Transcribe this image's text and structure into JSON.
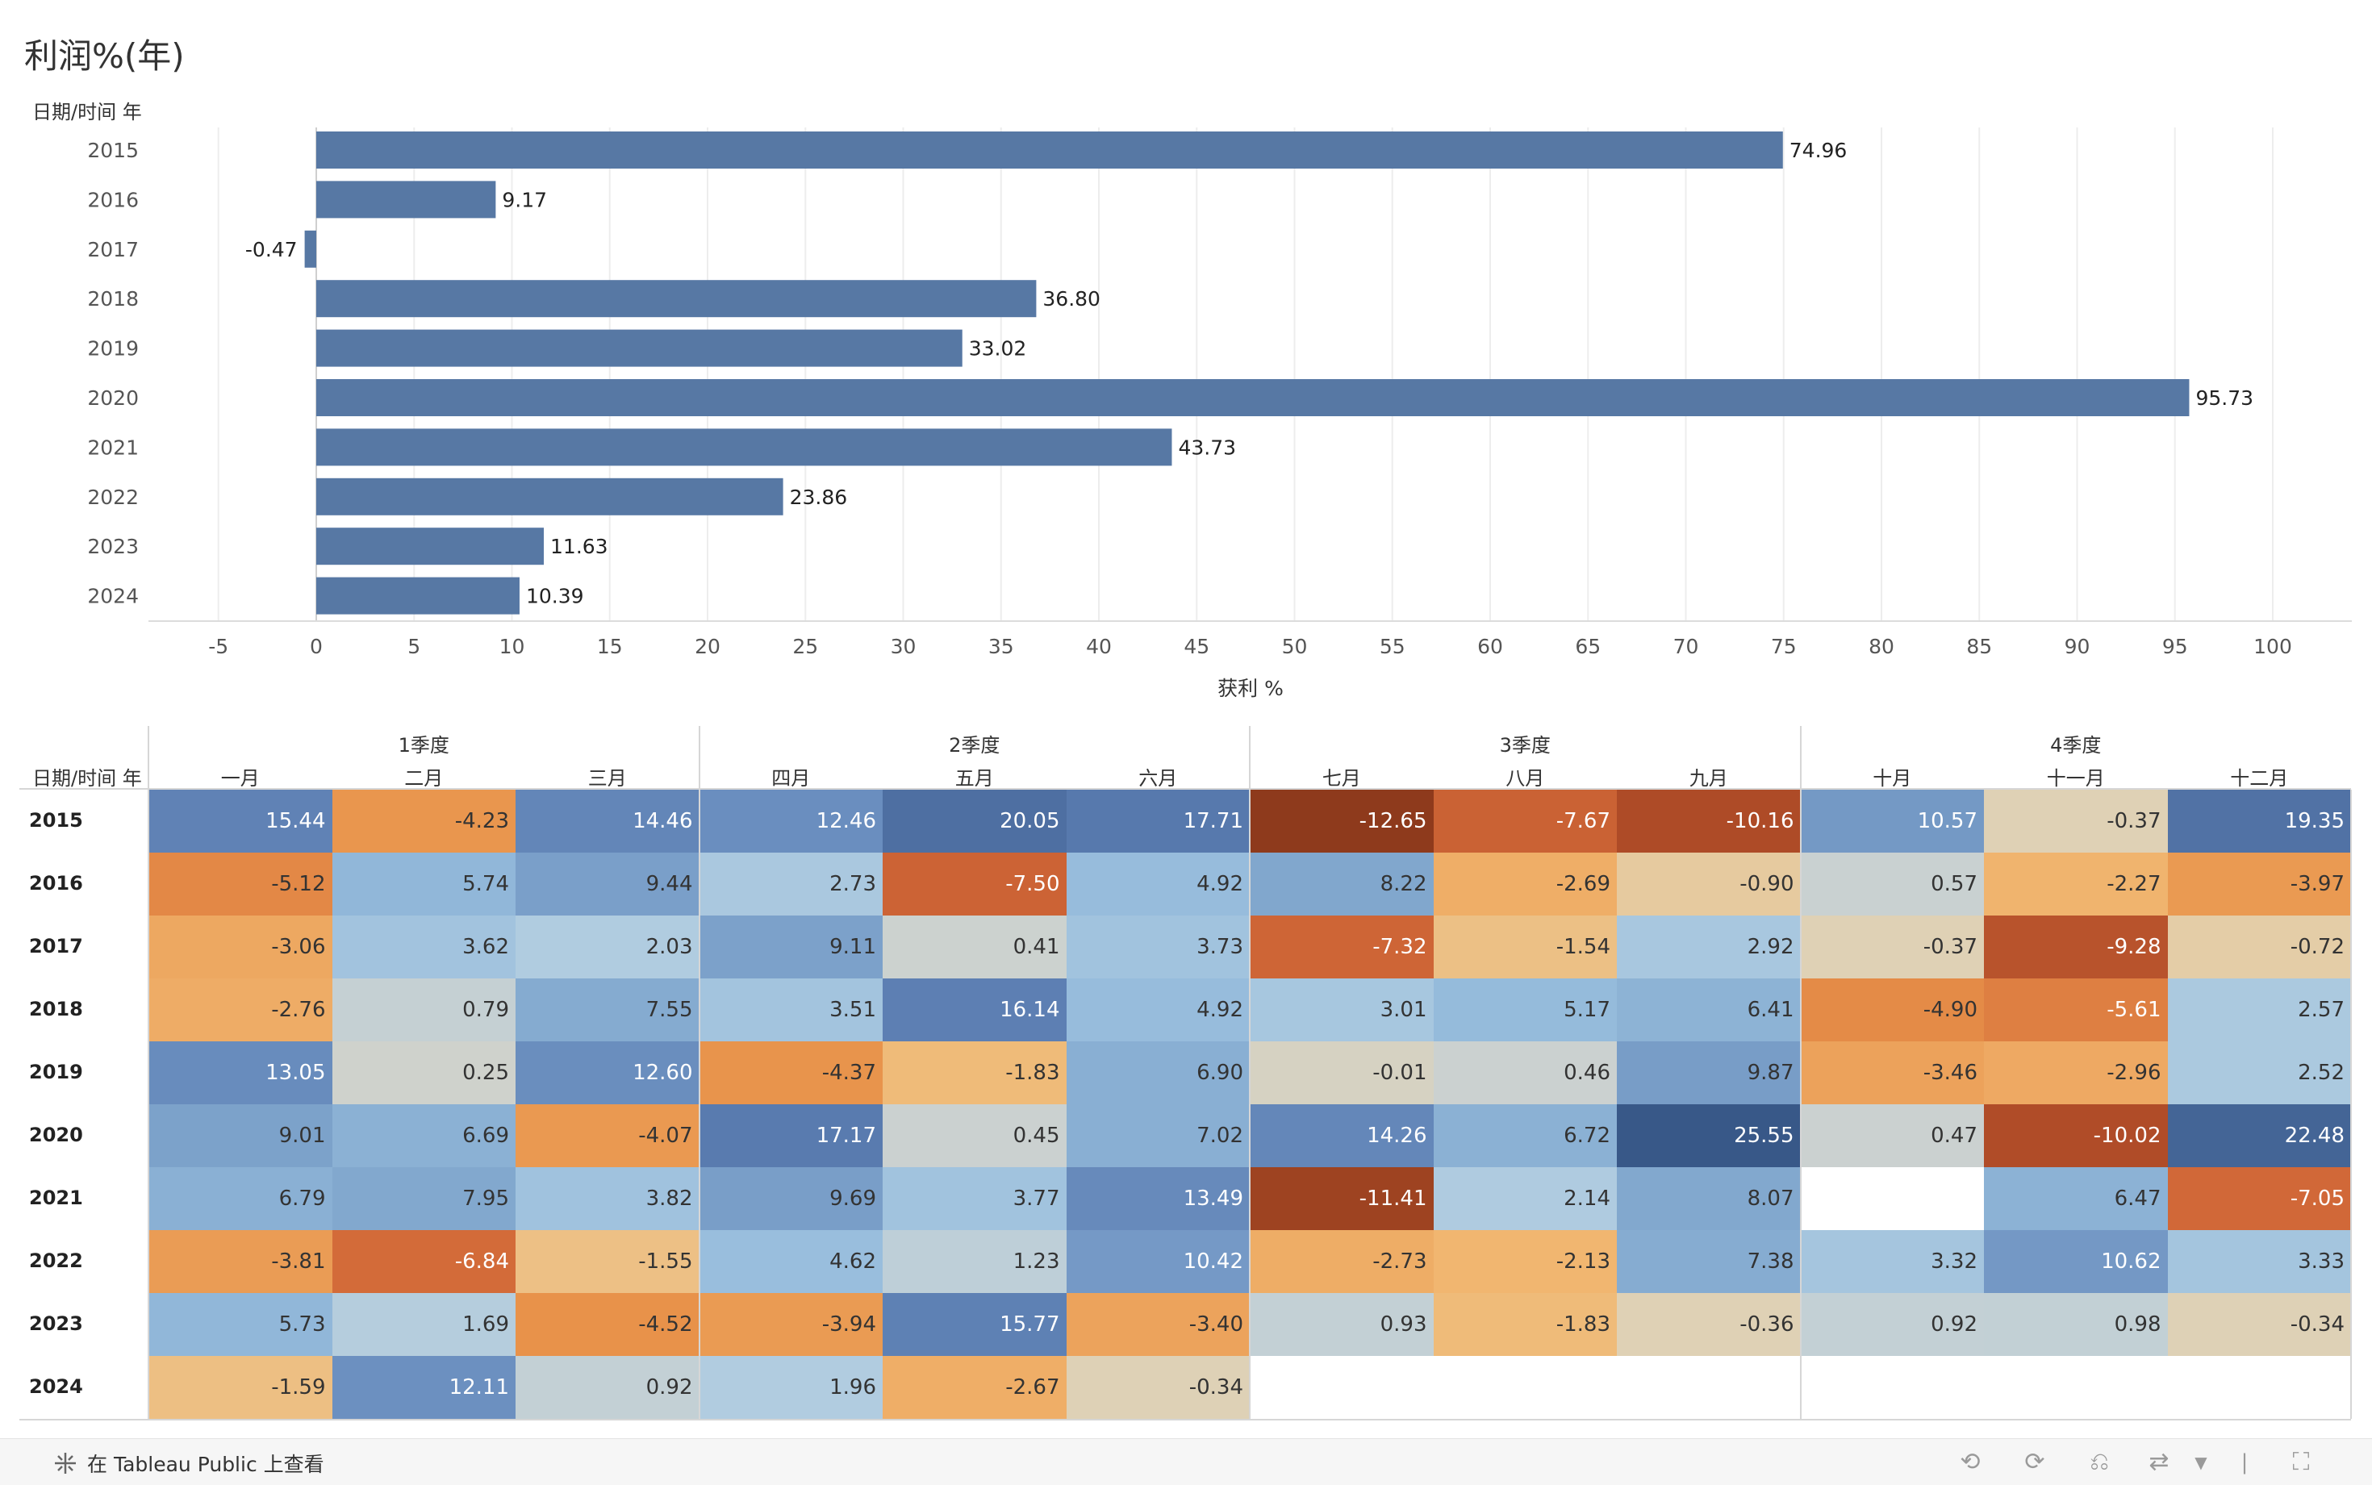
{
  "title": "利润%(年)",
  "chart_data": {
    "type": "bar",
    "orientation": "horizontal",
    "title": "利润%(年)",
    "ylabel": "日期/时间 年",
    "xlabel": "获利 %",
    "categories": [
      "2015",
      "2016",
      "2017",
      "2018",
      "2019",
      "2020",
      "2021",
      "2022",
      "2023",
      "2024"
    ],
    "values": [
      74.96,
      9.17,
      -0.47,
      36.8,
      33.02,
      95.73,
      43.73,
      23.86,
      11.63,
      10.39
    ],
    "value_labels": [
      "74.96",
      "9.17",
      "-0.47",
      "36.80",
      "33.02",
      "95.73",
      "43.73",
      "23.86",
      "11.63",
      "10.39"
    ],
    "xlim": [
      -8,
      104
    ],
    "xticks": [
      -5,
      0,
      5,
      10,
      15,
      20,
      25,
      30,
      35,
      40,
      45,
      50,
      55,
      60,
      65,
      70,
      75,
      80,
      85,
      90,
      95,
      100
    ],
    "bar_color": "#5778a4",
    "grid": true
  },
  "table": {
    "row_header_title": "日期/时间 年",
    "quarters": [
      "1季度",
      "2季度",
      "3季度",
      "4季度"
    ],
    "months": [
      "一月",
      "二月",
      "三月",
      "四月",
      "五月",
      "六月",
      "七月",
      "八月",
      "九月",
      "十月",
      "十一月",
      "十二月"
    ],
    "rows": [
      {
        "year": "2015",
        "values": [
          "15.44",
          "-4.23",
          "14.46",
          "12.46",
          "20.05",
          "17.71",
          "-12.65",
          "-7.67",
          "-10.16",
          "10.57",
          "-0.37",
          "19.35"
        ]
      },
      {
        "year": "2016",
        "values": [
          "-5.12",
          "5.74",
          "9.44",
          "2.73",
          "-7.50",
          "4.92",
          "8.22",
          "-2.69",
          "-0.90",
          "0.57",
          "-2.27",
          "-3.97"
        ]
      },
      {
        "year": "2017",
        "values": [
          "-3.06",
          "3.62",
          "2.03",
          "9.11",
          "0.41",
          "3.73",
          "-7.32",
          "-1.54",
          "2.92",
          "-0.37",
          "-9.28",
          "-0.72"
        ]
      },
      {
        "year": "2018",
        "values": [
          "-2.76",
          "0.79",
          "7.55",
          "3.51",
          "16.14",
          "4.92",
          "3.01",
          "5.17",
          "6.41",
          "-4.90",
          "-5.61",
          "2.57"
        ]
      },
      {
        "year": "2019",
        "values": [
          "13.05",
          "0.25",
          "12.60",
          "-4.37",
          "-1.83",
          "6.90",
          "-0.01",
          "0.46",
          "9.87",
          "-3.46",
          "-2.96",
          "2.52"
        ]
      },
      {
        "year": "2020",
        "values": [
          "9.01",
          "6.69",
          "-4.07",
          "17.17",
          "0.45",
          "7.02",
          "14.26",
          "6.72",
          "25.55",
          "0.47",
          "-10.02",
          "22.48"
        ]
      },
      {
        "year": "2021",
        "values": [
          "6.79",
          "7.95",
          "3.82",
          "9.69",
          "3.77",
          "13.49",
          "-11.41",
          "2.14",
          "8.07",
          "",
          "6.47",
          "-7.05"
        ]
      },
      {
        "year": "2022",
        "values": [
          "-3.81",
          "-6.84",
          "-1.55",
          "4.62",
          "1.23",
          "10.42",
          "-2.73",
          "-2.13",
          "7.38",
          "3.32",
          "10.62",
          "3.33"
        ]
      },
      {
        "year": "2023",
        "values": [
          "5.73",
          "1.69",
          "-4.52",
          "-3.94",
          "15.77",
          "-3.40",
          "0.93",
          "-1.83",
          "-0.36",
          "0.92",
          "0.98",
          "-0.34"
        ]
      },
      {
        "year": "2024",
        "values": [
          "-1.59",
          "12.11",
          "0.92",
          "1.96",
          "-2.67",
          "-0.34",
          "",
          "",
          "",
          "",
          "",
          ""
        ]
      }
    ]
  },
  "toolbar": {
    "view_on_tableau": "在 Tableau Public 上查看",
    "icons": [
      "tableau-logo-icon",
      "undo-icon",
      "redo-icon",
      "revert-icon",
      "share-icon",
      "dropdown-caret-icon",
      "fullscreen-icon"
    ]
  }
}
